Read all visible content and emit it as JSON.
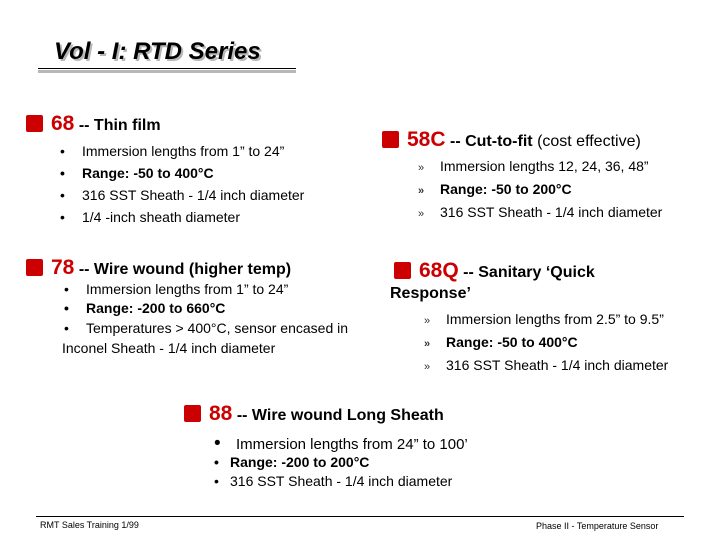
{
  "title": "Vol - I: RTD Series",
  "s68": {
    "num": "68",
    "desc": "-- Thin film",
    "items": [
      "Immersion lengths from 1” to 24”",
      "Range:  -50 to 400°C",
      "316 SST Sheath - 1/4 inch diameter",
      "1/4 -inch  sheath diameter"
    ]
  },
  "s58c": {
    "num": "58C",
    "desc": "-- Cut-to-fit",
    "extra": "(cost effective)",
    "items": [
      "Immersion lengths 12, 24, 36, 48”",
      "Range:  -50 to 200°C",
      "316 SST Sheath - 1/4 inch diameter"
    ]
  },
  "s78": {
    "num": "78",
    "desc": "-- Wire wound (higher temp)",
    "items": [
      "Immersion lengths from 1” to 24”",
      "Range:  -200 to 660°C",
      "Temperatures > 400°C, sensor encased in"
    ],
    "continuation": "Inconel Sheath - 1/4 inch diameter"
  },
  "s68q": {
    "num": "68Q",
    "desc": "-- Sanitary ‘Quick",
    "desc2": "Response’",
    "items": [
      "Immersion lengths from 2.5” to 9.5”",
      "Range:  -50 to 400°C",
      "316 SST Sheath - 1/4 inch diameter"
    ]
  },
  "s88": {
    "num": "88",
    "desc": "-- Wire wound Long Sheath",
    "items": [
      "Immersion lengths from 24” to 100’",
      "Range:  -200 to 200°C",
      "316 SST Sheath - 1/4 inch diameter"
    ]
  },
  "bullet": "•",
  "arrow": "»",
  "footer": {
    "left": "RMT Sales Training  1/99",
    "right": "Phase II - Temperature Sensor"
  },
  "colors": {
    "accent": "#cc0000",
    "title_shadow": "#b8b8b8"
  }
}
